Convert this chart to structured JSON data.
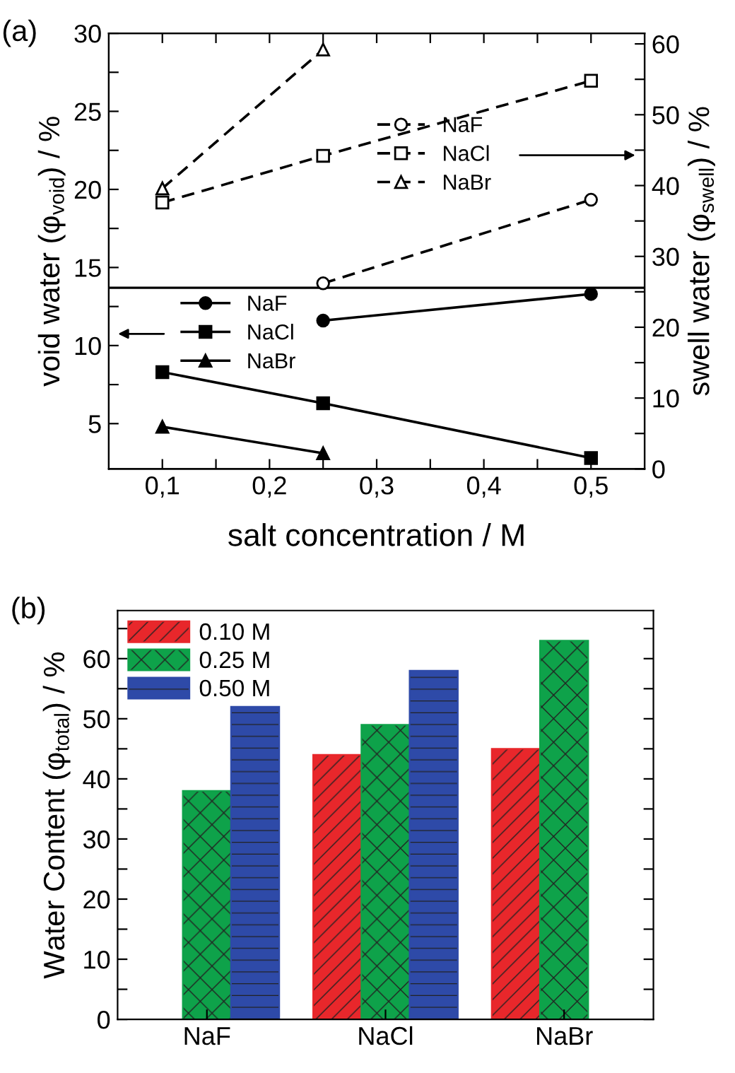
{
  "chart_data": [
    {
      "type": "line",
      "title": "(a)",
      "xlabel": "salt concentration / M",
      "ylabel": "void water (φ$_{void}$) / %",
      "y2label": "swell water (φ$_{swell}$) / %",
      "x": [
        0.1,
        0.25,
        0.5
      ],
      "series": [
        {
          "name": "NaF",
          "color": "#000000",
          "values": [
            null,
            11.6,
            13.3
          ],
          "marker": "circle",
          "line_style": "solid"
        },
        {
          "name": "NaCl",
          "color": "#000000",
          "values": [
            8.3,
            6.3,
            2.8
          ],
          "marker": "square",
          "line_style": "solid"
        },
        {
          "name": "NaBr",
          "color": "#000000",
          "values": [
            4.8,
            3.1,
            null
          ],
          "marker": "triangle",
          "line_style": "solid"
        },
        {
          "name": "NaF",
          "color": "#000000",
          "values": [
            null,
            26.2,
            38.0
          ],
          "marker": "circle",
          "line_style": "dashed",
          "axis": "y2"
        },
        {
          "name": "NaCl",
          "color": "#000000",
          "values": [
            37.6,
            44.2,
            54.8
          ],
          "marker": "square",
          "line_style": "dashed",
          "axis": "y2"
        },
        {
          "name": "NaBr",
          "color": "#000000",
          "values": [
            39.6,
            59.2,
            null
          ],
          "marker": "triangle",
          "line_style": "dashed",
          "axis": "y2"
        }
      ],
      "xlim": [
        0.05,
        0.55
      ],
      "xticks": [
        {
          "value": 0.1,
          "label": "0,1"
        },
        {
          "value": 0.15,
          "label": null
        },
        {
          "value": 0.2,
          "label": "0,2"
        },
        {
          "value": 0.25,
          "label": null
        },
        {
          "value": 0.3,
          "label": "0,3"
        },
        {
          "value": 0.35,
          "label": null
        },
        {
          "value": 0.4,
          "label": "0,4"
        },
        {
          "value": 0.45,
          "label": null
        },
        {
          "value": 0.5,
          "label": "0,5"
        }
      ],
      "ylim": [
        2.1,
        30
      ],
      "yticks": [
        5,
        {
          "value": 7.5,
          "label": null
        },
        10,
        {
          "value": 12.5,
          "label": null
        },
        15,
        {
          "value": 17.5,
          "label": null
        },
        20,
        {
          "value": 22.5,
          "label": null
        },
        25,
        {
          "value": 27.5,
          "label": null
        },
        30
      ],
      "y2lim": [
        0,
        61.5
      ],
      "y2ticks": [
        0,
        {
          "value": 5,
          "label": null
        },
        10,
        {
          "value": 15,
          "label": null
        },
        20,
        {
          "value": 25,
          "label": null
        },
        30,
        {
          "value": 35,
          "label": null
        },
        40,
        {
          "value": 45,
          "label": null
        },
        50,
        {
          "value": 55,
          "label": null
        },
        60
      ],
      "ref_lines": [
        {
          "axis": "y",
          "value": 13.7,
          "color": "#000000",
          "line_style": "solid"
        }
      ],
      "grid": false,
      "legend": "left"
    },
    {
      "type": "bar",
      "title": "(b)",
      "ylabel": "Water Content (φ$_{total}$) / %",
      "categories": [
        "NaF",
        "NaCl",
        "NaBr"
      ],
      "series": [
        {
          "name": "0.10 M",
          "color": "#e8272b",
          "values": [
            null,
            44,
            45
          ]
        },
        {
          "name": "0.25 M",
          "color": "#0ea24a",
          "values": [
            38,
            49,
            63
          ]
        },
        {
          "name": "0.50 M",
          "color": "#2e4aa8",
          "values": [
            52,
            58,
            null
          ]
        }
      ],
      "ylim": [
        0,
        68
      ],
      "yticks": [
        0,
        {
          "value": 5,
          "label": null
        },
        10,
        {
          "value": 15,
          "label": null
        },
        20,
        {
          "value": 25,
          "label": null
        },
        30,
        {
          "value": 35,
          "label": null
        },
        40,
        {
          "value": 45,
          "label": null
        },
        50,
        {
          "value": 55,
          "label": null
        },
        60,
        {
          "value": 65,
          "label": null
        }
      ],
      "grid": false,
      "legend": "top left"
    }
  ]
}
